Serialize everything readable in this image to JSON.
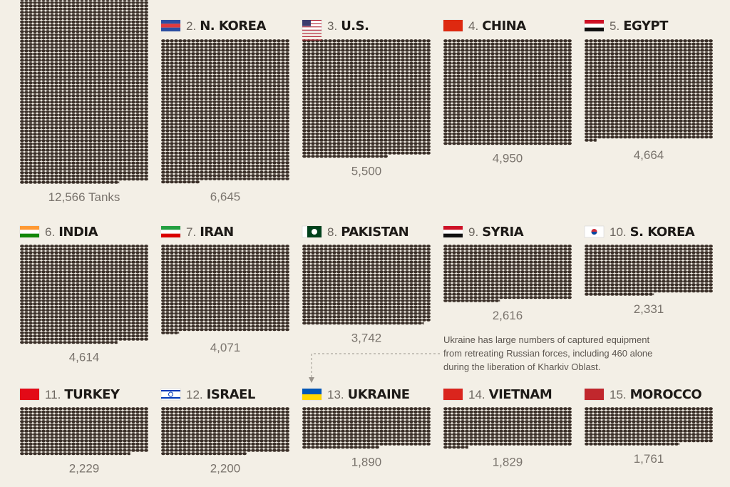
{
  "chart_data": {
    "type": "pictogram",
    "ranks": [
      null,
      "2.",
      "3.",
      "4.",
      "5.",
      "6.",
      "7.",
      "8.",
      "9.",
      "10.",
      "11.",
      "12.",
      "13.",
      "14.",
      "15."
    ],
    "categories": [
      null,
      "N. KOREA",
      "U.S.",
      "CHINA",
      "EGYPT",
      "INDIA",
      "IRAN",
      "PAKISTAN",
      "SYRIA",
      "S. KOREA",
      "TURKEY",
      "ISRAEL",
      "UKRAINE",
      "VIETNAM",
      "MOROCCO"
    ],
    "values": [
      12566,
      6645,
      5500,
      4950,
      4664,
      4614,
      4071,
      3742,
      2616,
      2331,
      2229,
      2200,
      1890,
      1829,
      1761
    ],
    "value_labels": [
      "12,566 Tanks",
      "6,645",
      "5,500",
      "4,950",
      "4,664",
      "4,614",
      "4,071",
      "3,742",
      "2,616",
      "2,331",
      "2,229",
      "2,200",
      "1,890",
      "1,829",
      "1,761"
    ],
    "color": "#3a2f28",
    "annotation": [
      "Ukraine has large numbers of captured equipment",
      "from retreating Russian forces, including 460 alone",
      "during the liberation of Kharkiv Oblast."
    ]
  }
}
